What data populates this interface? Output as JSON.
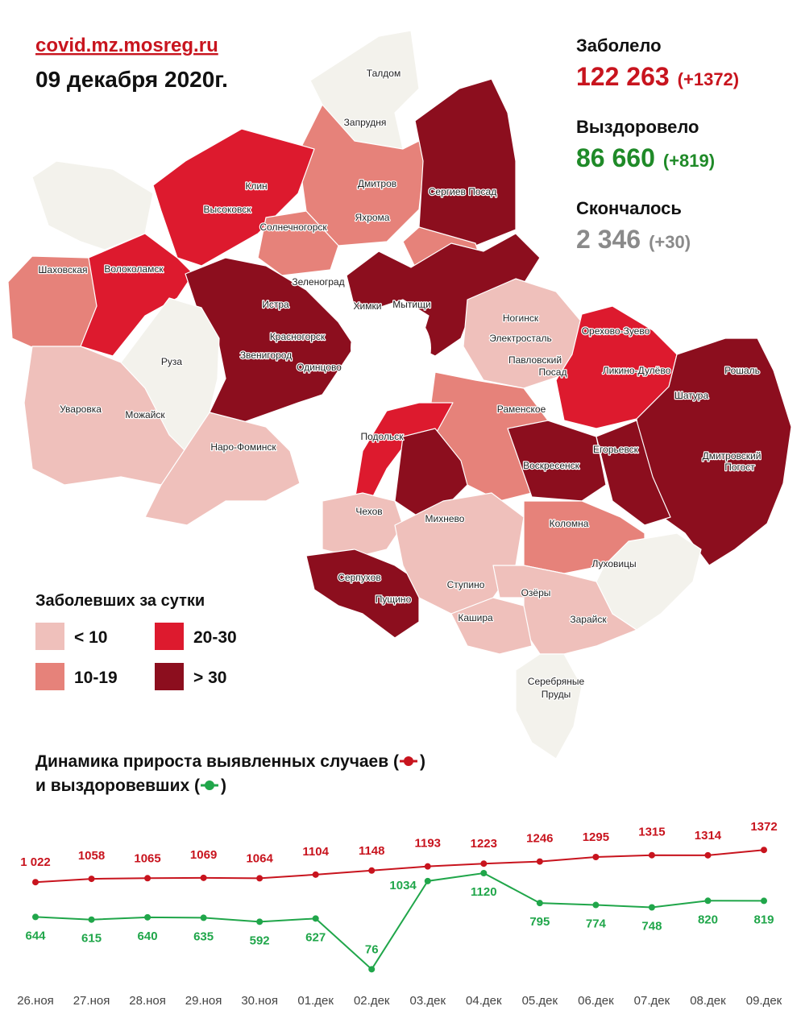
{
  "header": {
    "site": "covid.mz.mosreg.ru",
    "date": "09 декабря 2020г."
  },
  "stats": [
    {
      "label": "Заболело",
      "value": "122 263",
      "delta": "(+1372)",
      "color": "#c8141e"
    },
    {
      "label": "Выздоровело",
      "value": "86 660",
      "delta": "(+819)",
      "color": "#1f8a28"
    },
    {
      "label": "Скончалось",
      "value": "2 346",
      "delta": "(+30)",
      "color": "#8a8a8a"
    }
  ],
  "legend": {
    "title": "Заболевших за сутки",
    "items": [
      {
        "label": "< 10",
        "color": "#efc0bb"
      },
      {
        "label": "10-19",
        "color": "#e6827a"
      },
      {
        "label": "20-30",
        "color": "#dd1a2e"
      },
      {
        "label": "> 30",
        "color": "#8c0e1e"
      }
    ]
  },
  "map": {
    "labels": [
      "Талдом",
      "Запрудня",
      "Клин",
      "Высоковск",
      "Дмитров",
      "Яхрома",
      "Сергиев Посад",
      "Солнечногорск",
      "Шаховская",
      "Волоколамск",
      "Зеленоград",
      "Истра",
      "Мытищи",
      "Химки",
      "Ногинск",
      "Электросталь",
      "Орехово-Зуево",
      "Красногорск",
      "Павловский",
      "Посад",
      "Звенигород",
      "Одинцово",
      "Ликино-Дулёво",
      "Рошаль",
      "Руза",
      "Шатура",
      "Уваровка",
      "Можайск",
      "Раменское",
      "Наро-Фоминск",
      "Подольск",
      "Егорьевск",
      "Воскресенск",
      "Дмитровский",
      "Погост",
      "Чехов",
      "Михнево",
      "Коломна",
      "Серпухов",
      "Луховицы",
      "Ступино",
      "Пущино",
      "Озёры",
      "Кашира",
      "Зарайск",
      "Серебряные",
      "Пруды"
    ]
  },
  "chart_data": {
    "type": "line",
    "title": "Динамика прироста выявленных случаев (",
    "title_end": ")",
    "title2": "и выздоровевших (",
    "title2_end": ")",
    "categories": [
      "26.ноя",
      "27.ноя",
      "28.ноя",
      "29.ноя",
      "30.ноя",
      "01.дек",
      "02.дек",
      "03.дек",
      "04.дек",
      "05.дек",
      "06.дек",
      "07.дек",
      "08.дек",
      "09.дек"
    ],
    "ylim": [
      0,
      1400
    ],
    "series": [
      {
        "name": "выявленные случаи",
        "color": "#c8141e",
        "values": [
          1022,
          1058,
          1065,
          1069,
          1064,
          1104,
          1148,
          1193,
          1223,
          1246,
          1295,
          1315,
          1314,
          1372
        ],
        "value_labels": [
          "1 022",
          "1058",
          "1065",
          "1069",
          "1064",
          "1104",
          "1148",
          "1193",
          "1223",
          "1246",
          "1295",
          "1315",
          "1314",
          "1372"
        ]
      },
      {
        "name": "выздоровевшие",
        "color": "#20a64a",
        "values": [
          644,
          615,
          640,
          635,
          592,
          627,
          76,
          1034,
          1120,
          795,
          774,
          748,
          820,
          819
        ]
      }
    ]
  }
}
